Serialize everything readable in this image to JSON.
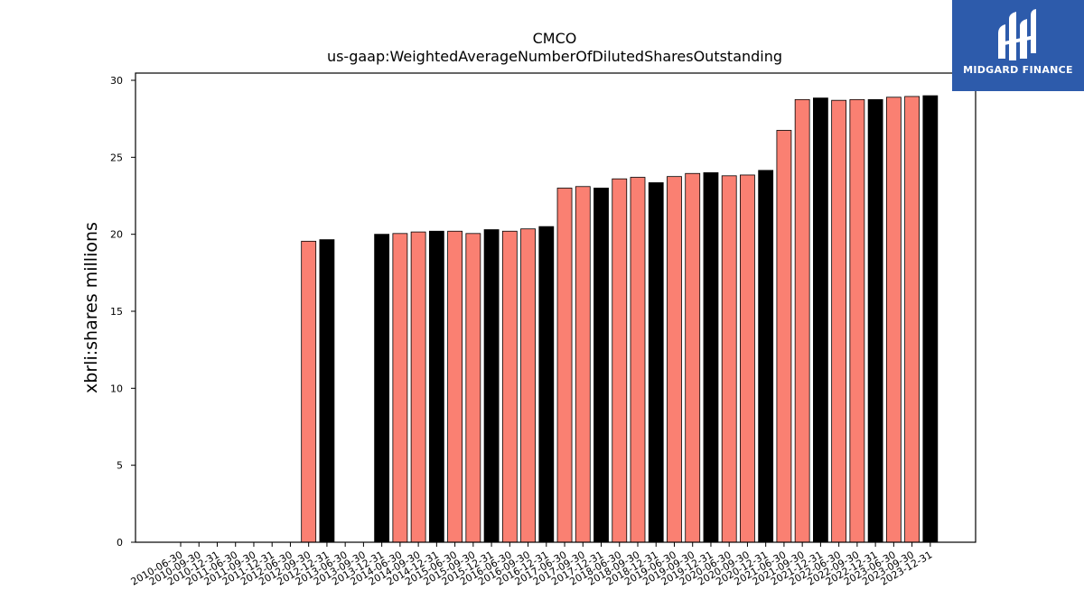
{
  "logo": {
    "text": "MIDGARD FINANCE",
    "color": "#2d5bab"
  },
  "chart_data": {
    "type": "bar",
    "title": "CMCO",
    "subtitle": "us-gaap:WeightedAverageNumberOfDilutedSharesOutstanding",
    "ylabel": "xbrli:shares millions",
    "xlabel": "",
    "ylim": [
      0,
      30
    ],
    "yticks": [
      0,
      5,
      10,
      15,
      20,
      25,
      30
    ],
    "grid": false,
    "colors": {
      "salmon": "#fa8072",
      "black": "#000000"
    },
    "categories": [
      "2010-06-30",
      "2010-09-30",
      "2010-12-31",
      "2011-06-30",
      "2011-09-30",
      "2011-12-31",
      "2012-06-30",
      "2012-09-30",
      "2012-12-31",
      "2013-06-30",
      "2013-09-30",
      "2013-12-31",
      "2014-06-30",
      "2014-09-30",
      "2014-12-31",
      "2015-06-30",
      "2015-09-30",
      "2015-12-31",
      "2016-06-30",
      "2016-09-30",
      "2016-12-31",
      "2017-06-30",
      "2017-09-30",
      "2017-12-31",
      "2018-06-30",
      "2018-09-30",
      "2018-12-31",
      "2019-06-30",
      "2019-09-30",
      "2019-12-31",
      "2020-06-30",
      "2020-09-30",
      "2020-12-31",
      "2021-06-30",
      "2021-09-30",
      "2021-12-31",
      "2022-06-30",
      "2022-09-30",
      "2022-12-31",
      "2023-06-30",
      "2023-09-30",
      "2023-12-31"
    ],
    "values": [
      0,
      0,
      0,
      0,
      0,
      0,
      0,
      19.55,
      19.65,
      0,
      0,
      20.0,
      20.05,
      20.15,
      20.2,
      20.2,
      20.05,
      20.3,
      20.2,
      20.35,
      20.5,
      23.0,
      23.1,
      23.0,
      23.6,
      23.7,
      23.35,
      23.75,
      23.95,
      24.0,
      23.8,
      23.85,
      24.15,
      26.75,
      28.75,
      28.85,
      28.7,
      28.75,
      28.75,
      28.9,
      28.95,
      29.0
    ],
    "bar_colors": [
      "salmon",
      "salmon",
      "salmon",
      "salmon",
      "salmon",
      "salmon",
      "salmon",
      "salmon",
      "black",
      "salmon",
      "salmon",
      "black",
      "salmon",
      "salmon",
      "black",
      "salmon",
      "salmon",
      "black",
      "salmon",
      "salmon",
      "black",
      "salmon",
      "salmon",
      "black",
      "salmon",
      "salmon",
      "black",
      "salmon",
      "salmon",
      "black",
      "salmon",
      "salmon",
      "black",
      "salmon",
      "salmon",
      "black",
      "salmon",
      "salmon",
      "black",
      "salmon",
      "salmon",
      "black"
    ]
  }
}
